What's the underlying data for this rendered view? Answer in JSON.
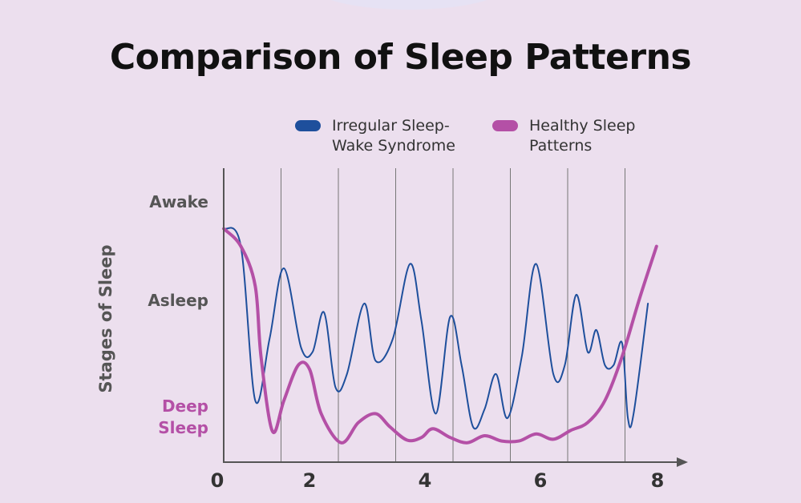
{
  "title": "Comparison of Sleep Patterns",
  "colors": {
    "background": "#ecdfee",
    "irregular": "#1e4f9c",
    "healthy": "#b450a6",
    "axis": "#555555",
    "gridline": "#777777"
  },
  "chart_data": {
    "type": "line",
    "title": "Comparison of Sleep Patterns",
    "xlabel": "",
    "ylabel": "Stages of Sleep",
    "xlim": [
      0,
      8.3
    ],
    "ylim": [
      0,
      3.0
    ],
    "x_ticks": [
      0,
      2,
      4,
      6,
      8
    ],
    "y_tick_labels": [
      {
        "text": "Awake",
        "value": 2.65
      },
      {
        "text": "Asleep",
        "value": 1.65
      },
      {
        "text": "Deep\nSleep",
        "value": 0.45
      }
    ],
    "grid": "vertical lines at x = 1, 2, 3, 4, 5, 6, 7",
    "legend_position": "top-right",
    "series": [
      {
        "name": "Irregular Sleep-Wake Syndrome",
        "color": "#1e4f9c",
        "points": [
          [
            0,
            2.65
          ],
          [
            0.3,
            2.45
          ],
          [
            0.55,
            0.7
          ],
          [
            0.8,
            1.4
          ],
          [
            1.05,
            2.2
          ],
          [
            1.35,
            1.3
          ],
          [
            1.55,
            1.25
          ],
          [
            1.75,
            1.7
          ],
          [
            1.95,
            0.85
          ],
          [
            2.15,
            1.0
          ],
          [
            2.45,
            1.8
          ],
          [
            2.65,
            1.15
          ],
          [
            2.95,
            1.4
          ],
          [
            3.25,
            2.25
          ],
          [
            3.45,
            1.6
          ],
          [
            3.7,
            0.55
          ],
          [
            3.95,
            1.65
          ],
          [
            4.15,
            1.1
          ],
          [
            4.35,
            0.4
          ],
          [
            4.55,
            0.6
          ],
          [
            4.75,
            1.0
          ],
          [
            4.95,
            0.5
          ],
          [
            5.2,
            1.2
          ],
          [
            5.45,
            2.25
          ],
          [
            5.75,
            1.0
          ],
          [
            5.95,
            1.1
          ],
          [
            6.15,
            1.9
          ],
          [
            6.35,
            1.25
          ],
          [
            6.5,
            1.5
          ],
          [
            6.65,
            1.1
          ],
          [
            6.8,
            1.1
          ],
          [
            6.95,
            1.35
          ],
          [
            7.05,
            0.5
          ],
          [
            7.15,
            0.55
          ],
          [
            7.4,
            1.8
          ]
        ]
      },
      {
        "name": "Healthy Sleep Patterns",
        "color": "#b450a6",
        "points": [
          [
            0,
            2.65
          ],
          [
            0.3,
            2.45
          ],
          [
            0.55,
            2.0
          ],
          [
            0.65,
            1.2
          ],
          [
            0.85,
            0.35
          ],
          [
            1.05,
            0.7
          ],
          [
            1.3,
            1.1
          ],
          [
            1.5,
            1.05
          ],
          [
            1.7,
            0.55
          ],
          [
            2.05,
            0.22
          ],
          [
            2.35,
            0.45
          ],
          [
            2.65,
            0.55
          ],
          [
            2.9,
            0.4
          ],
          [
            3.2,
            0.25
          ],
          [
            3.45,
            0.28
          ],
          [
            3.65,
            0.38
          ],
          [
            3.95,
            0.28
          ],
          [
            4.25,
            0.22
          ],
          [
            4.55,
            0.3
          ],
          [
            4.85,
            0.24
          ],
          [
            5.15,
            0.24
          ],
          [
            5.45,
            0.32
          ],
          [
            5.75,
            0.26
          ],
          [
            6.05,
            0.36
          ],
          [
            6.35,
            0.45
          ],
          [
            6.65,
            0.7
          ],
          [
            6.95,
            1.2
          ],
          [
            7.25,
            1.85
          ],
          [
            7.55,
            2.45
          ]
        ]
      }
    ]
  },
  "legend": {
    "irregular": "Irregular Sleep-\nWake Syndrome",
    "healthy": "Healthy Sleep\nPatterns"
  },
  "y_tick_labels": {
    "awake": "Awake",
    "asleep": "Asleep",
    "deep": "Deep\nSleep"
  },
  "ylabel": "Stages of Sleep",
  "x_tick_labels": [
    "0",
    "2",
    "4",
    "6",
    "8"
  ]
}
